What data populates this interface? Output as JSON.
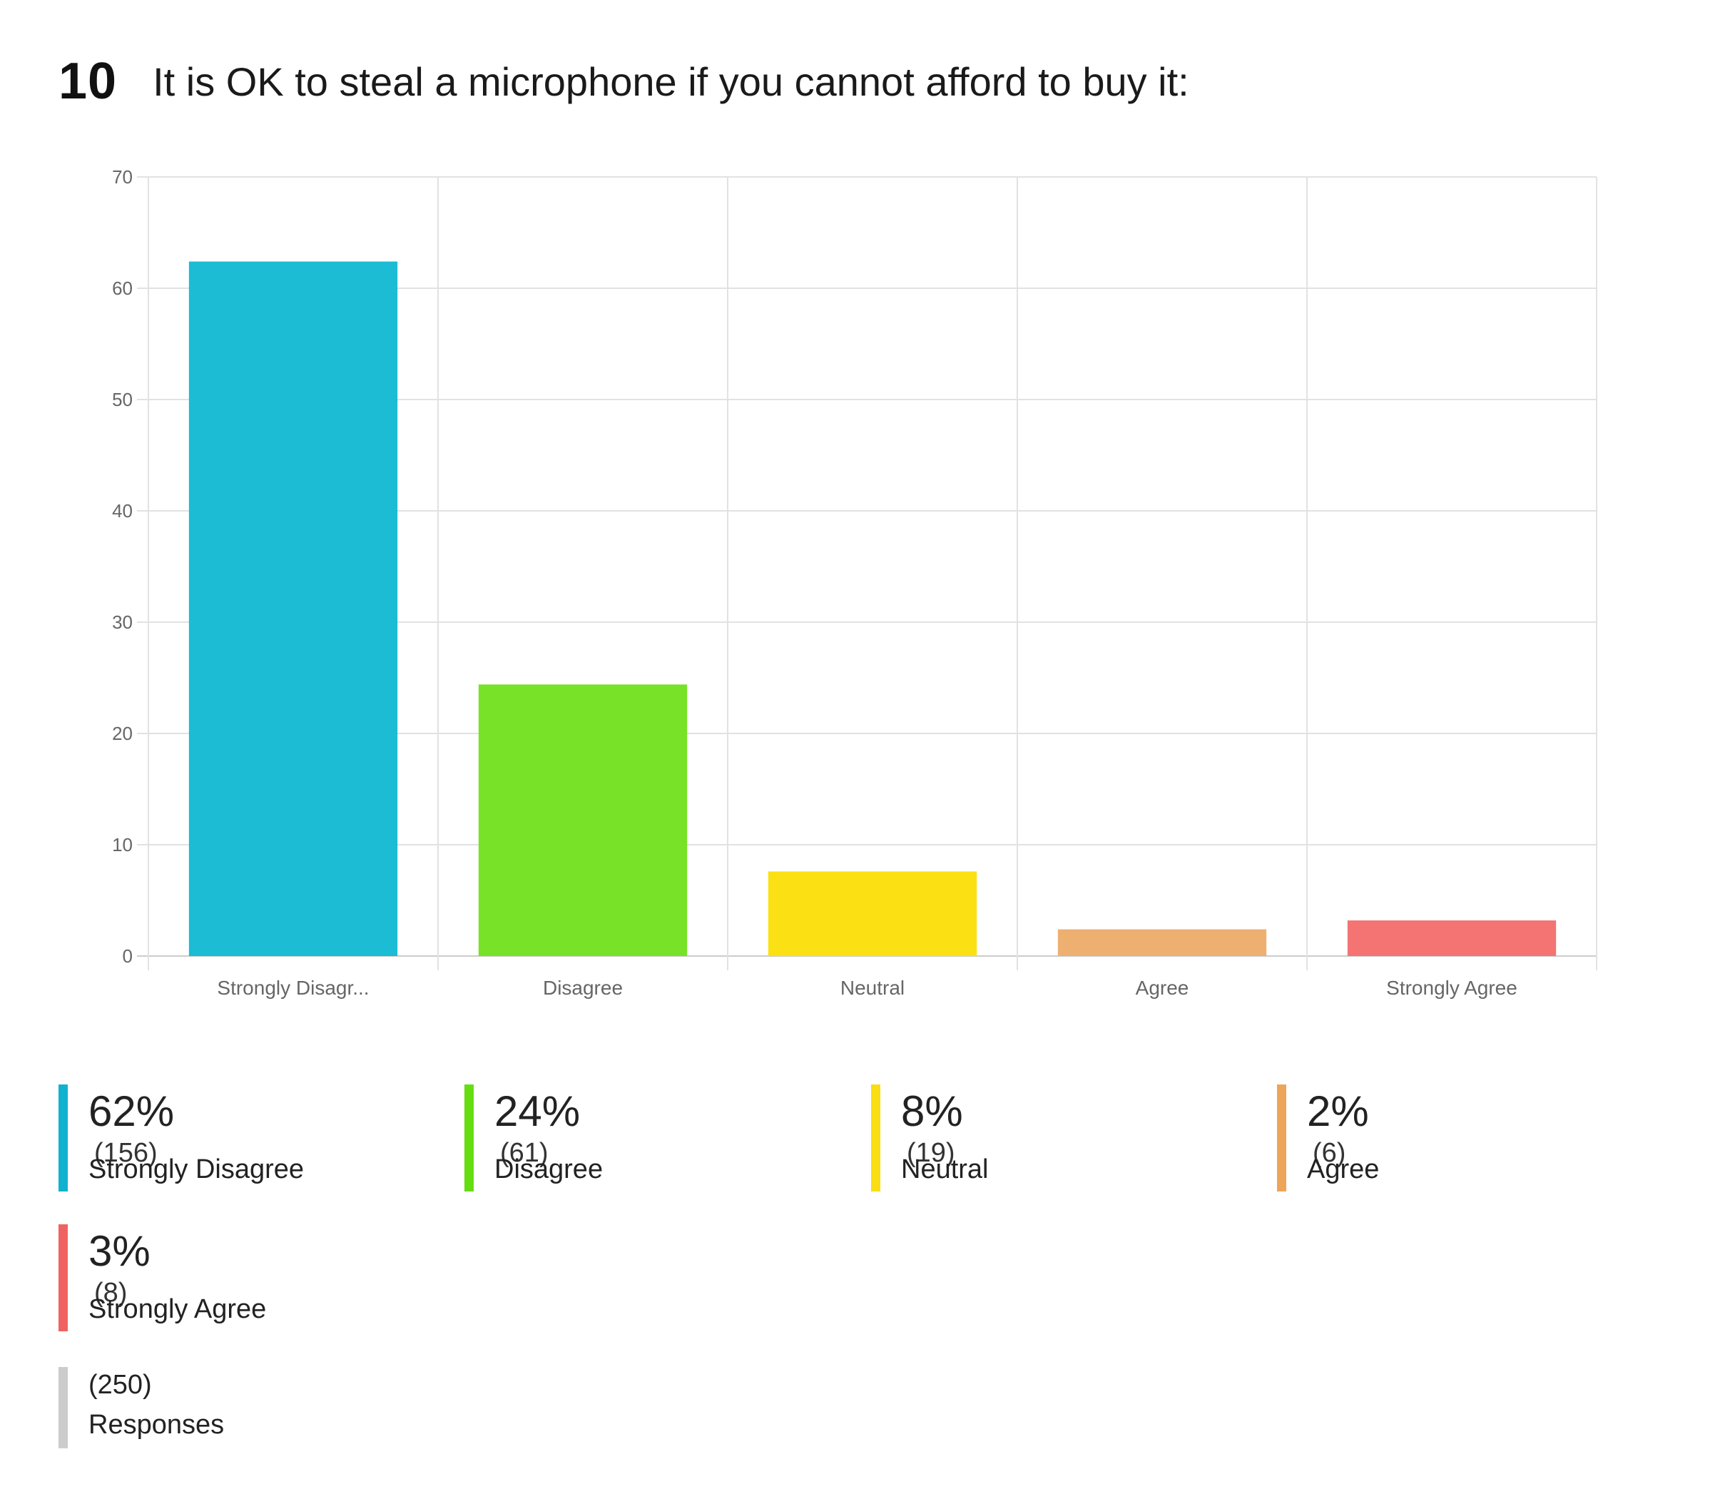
{
  "question": {
    "number": "10",
    "text": "It is OK to steal a microphone if you cannot afford to buy it:"
  },
  "chart_data": {
    "type": "bar",
    "categories": [
      "Strongly Disagr...",
      "Disagree",
      "Neutral",
      "Agree",
      "Strongly Agree"
    ],
    "values": [
      62.4,
      24.4,
      7.6,
      2.4,
      3.2
    ],
    "colors": [
      "#1bbcd4",
      "#77e227",
      "#fbe013",
      "#eeb070",
      "#f47474"
    ],
    "ylim": [
      0,
      70
    ],
    "yticks": [
      0,
      10,
      20,
      30,
      40,
      50,
      60,
      70
    ],
    "grid": true,
    "title": "",
    "xlabel": "",
    "ylabel": ""
  },
  "legend": {
    "items": [
      {
        "pct": "62%",
        "count": "(156)",
        "label": "Strongly Disagree",
        "color": "#10b2cf"
      },
      {
        "pct": "24%",
        "count": "(61)",
        "label": "Disagree",
        "color": "#66dd11"
      },
      {
        "pct": "8%",
        "count": "(19)",
        "label": "Neutral",
        "color": "#fadd12"
      },
      {
        "pct": "2%",
        "count": "(6)",
        "label": "Agree",
        "color": "#eda559"
      },
      {
        "pct": "3%",
        "count": "(8)",
        "label": "Strongly Agree",
        "color": "#f06262"
      }
    ],
    "responses": {
      "count": "(250)",
      "label": "Responses",
      "color": "#cccccc"
    }
  }
}
